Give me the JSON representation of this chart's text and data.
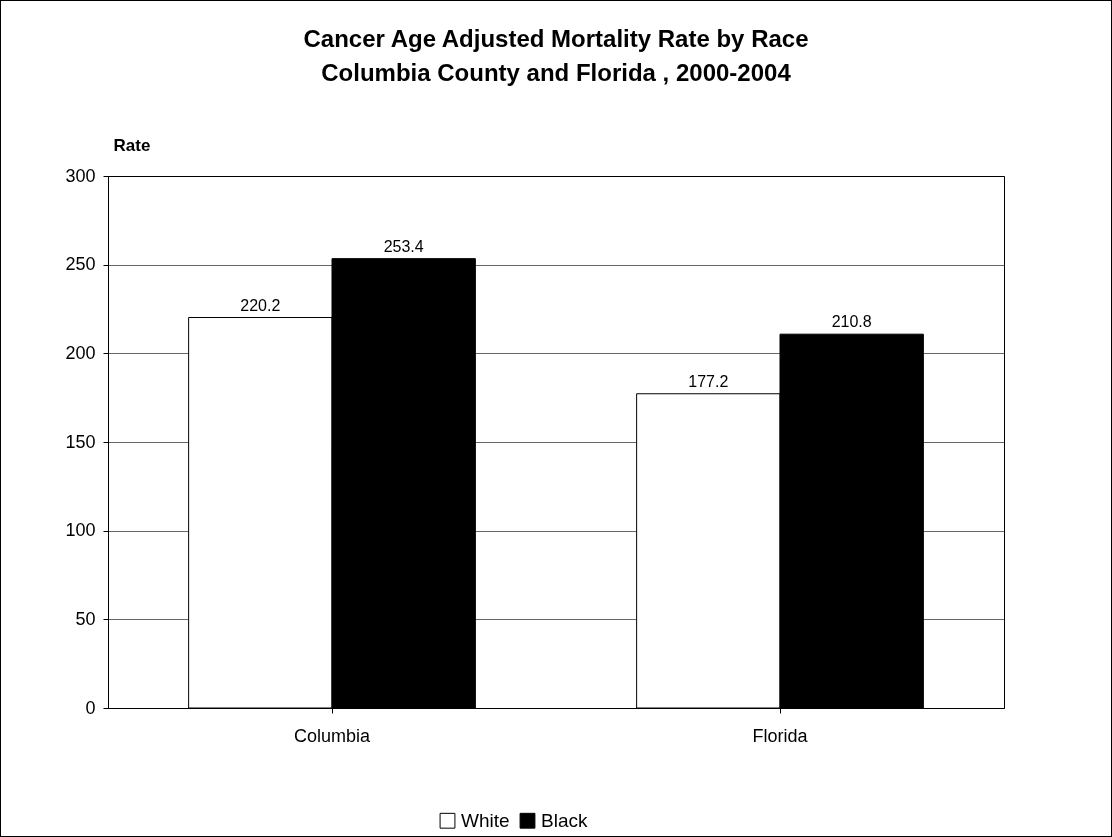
{
  "chart_data": {
    "type": "bar",
    "title": "Cancer Age Adjusted Mortality Rate by Race\nColumbia County and Florida , 2000-2004",
    "ylabel": "Rate",
    "categories": [
      "Columbia",
      "Florida"
    ],
    "series": [
      {
        "name": "White",
        "color": "#ffffff",
        "values": [
          220.2,
          177.2
        ]
      },
      {
        "name": "Black",
        "color": "#000000",
        "values": [
          253.4,
          210.8
        ]
      }
    ],
    "ylim": [
      0,
      300
    ],
    "yticks": [
      0,
      50,
      100,
      150,
      200,
      250,
      300
    ],
    "grid": "y",
    "legend": "bottom",
    "data_labels": true
  }
}
